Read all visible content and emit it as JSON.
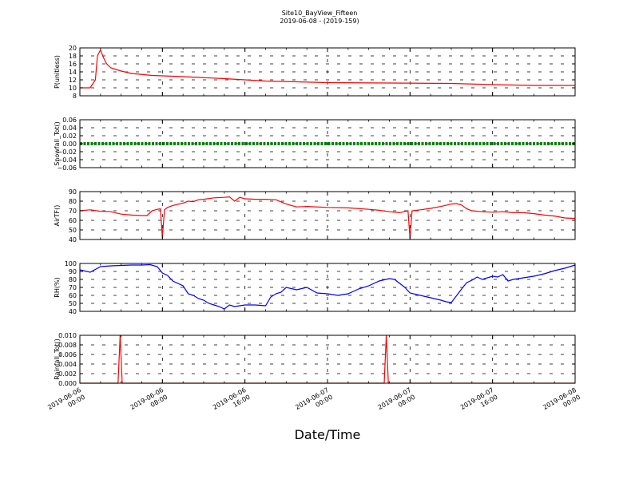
{
  "figure": {
    "title_line1": "Site10_BayView_Fifteen",
    "title_line2": "2019-06-08 - (2019-159)",
    "xlabel": "Date/Time"
  },
  "chart_data": {
    "type": "line",
    "x_range": [
      "2019-06-06 00:00",
      "2019-06-08 00:00"
    ],
    "x_tick_labels": [
      [
        "2019-06-06",
        "00:00"
      ],
      [
        "2019-06-06",
        "08:00"
      ],
      [
        "2019-06-06",
        "16:00"
      ],
      [
        "2019-06-07",
        "00:00"
      ],
      [
        "2019-06-07",
        "08:00"
      ],
      [
        "2019-06-07",
        "16:00"
      ],
      [
        "2019-06-08",
        "00:00"
      ]
    ],
    "grid": true,
    "panels": [
      {
        "ylabel": "P(unitless)",
        "ylim": [
          8,
          20
        ],
        "yticks": [
          8,
          10,
          12,
          14,
          16,
          18,
          20
        ],
        "ytick_labels": [
          "8",
          "10",
          "12",
          "14",
          "16",
          "18",
          "20"
        ],
        "color": "#ff0000",
        "x_hours": [
          0,
          1,
          1.5,
          1.7,
          2,
          2.3,
          2.6,
          3,
          4,
          5,
          7,
          10,
          14,
          18,
          24,
          30,
          36,
          40,
          44,
          48
        ],
        "y": [
          10,
          10,
          12,
          18,
          19.5,
          17.5,
          16,
          15,
          14.2,
          13.6,
          13.1,
          12.8,
          12.3,
          11.7,
          11.3,
          11.2,
          11.1,
          10.8,
          10.6,
          10.6
        ]
      },
      {
        "ylabel": "Snowfall_Tot()",
        "ylim": [
          -0.06,
          0.06
        ],
        "yticks": [
          -0.06,
          -0.04,
          -0.02,
          0,
          0.02,
          0.04,
          0.06
        ],
        "ytick_labels": [
          "−0.06",
          "−0.04",
          "−0.02",
          "0.00",
          "0.02",
          "0.04",
          "0.06"
        ],
        "color": "#008000",
        "x_hours": [
          0,
          48
        ],
        "y": [
          0,
          0
        ]
      },
      {
        "ylabel": "AirTF()",
        "ylim": [
          40,
          90
        ],
        "yticks": [
          40,
          50,
          60,
          70,
          80,
          90
        ],
        "ytick_labels": [
          "40",
          "50",
          "60",
          "70",
          "80",
          "90"
        ],
        "color": "#ff0000",
        "x_hours": [
          0,
          1,
          2,
          3,
          4,
          5,
          6,
          6.5,
          7,
          7.5,
          7.8,
          8.0,
          8.2,
          8.5,
          9,
          10,
          10.5,
          11,
          11.5,
          12,
          13,
          14,
          14.5,
          15,
          15.5,
          16,
          17,
          18,
          19,
          20,
          21,
          22,
          24,
          26,
          28,
          29,
          30,
          31,
          31.8,
          32.0,
          32.2,
          33,
          34,
          35,
          36,
          36.5,
          37,
          37.5,
          38,
          39,
          40,
          41,
          42,
          43,
          44,
          45,
          46,
          47,
          48
        ],
        "y": [
          70,
          71,
          69.5,
          69,
          66.5,
          65.5,
          65,
          65,
          70,
          71.5,
          72,
          42,
          71,
          73.5,
          75.5,
          78,
          80,
          79.5,
          81.5,
          82,
          83.5,
          84,
          84.5,
          80,
          84,
          82.5,
          82,
          82,
          81.5,
          77,
          74,
          74.5,
          73.5,
          73,
          71.5,
          70.5,
          69,
          68,
          70,
          41,
          70,
          71,
          72.5,
          74.5,
          77,
          77.5,
          76,
          72,
          70,
          69,
          68.5,
          69,
          68,
          68,
          67,
          65.5,
          64.5,
          62.5,
          62
        ]
      },
      {
        "ylabel": "RH(%)",
        "ylim": [
          40,
          100
        ],
        "yticks": [
          40,
          50,
          60,
          70,
          80,
          90,
          100
        ],
        "ytick_labels": [
          "40",
          "50",
          "60",
          "70",
          "80",
          "90",
          "100"
        ],
        "color": "#0000ff",
        "x_hours": [
          0,
          1,
          2,
          3,
          4,
          5,
          6,
          6.8,
          7.5,
          8,
          8.5,
          9,
          10,
          10.5,
          11,
          11.5,
          12,
          12.5,
          13,
          13.5,
          14,
          14.5,
          15,
          15.5,
          16,
          17,
          18,
          18.5,
          19,
          19.5,
          20,
          21,
          22,
          23,
          24,
          25,
          26,
          27,
          28,
          29,
          30,
          30.5,
          31,
          31.5,
          32,
          33,
          34,
          35,
          35.5,
          36,
          37,
          37.5,
          38,
          38.5,
          39,
          40,
          40.5,
          41,
          41.5,
          42,
          43,
          44,
          45,
          46,
          47,
          48
        ],
        "y": [
          92,
          89,
          96,
          97,
          97.5,
          98,
          98,
          98.5,
          96,
          88,
          85,
          78,
          72,
          62,
          60,
          56,
          54,
          50,
          48,
          46,
          43,
          48,
          46,
          47,
          48,
          48,
          47,
          58,
          62,
          64,
          70,
          67,
          70,
          63,
          62,
          60,
          62,
          68,
          72,
          78,
          81,
          80,
          75,
          70,
          63,
          60,
          57,
          54,
          52,
          51,
          68,
          76,
          79,
          83,
          80,
          84,
          83,
          86,
          78,
          80,
          82,
          84,
          87,
          91,
          94,
          98
        ]
      },
      {
        "ylabel": "Rainfall_Tot()",
        "ylim": [
          0,
          0.01
        ],
        "yticks": [
          0,
          0.002,
          0.004,
          0.006,
          0.008,
          0.01
        ],
        "ytick_labels": [
          "0.000",
          "0.002",
          "0.004",
          "0.006",
          "0.008",
          "0.010"
        ],
        "color": "#ff0000",
        "x_hours": [
          0,
          3.7,
          3.9,
          4.1,
          29.5,
          29.7,
          29.9,
          48
        ],
        "y": [
          0,
          0,
          0.01,
          0,
          0,
          0.01,
          0,
          0
        ]
      }
    ]
  }
}
